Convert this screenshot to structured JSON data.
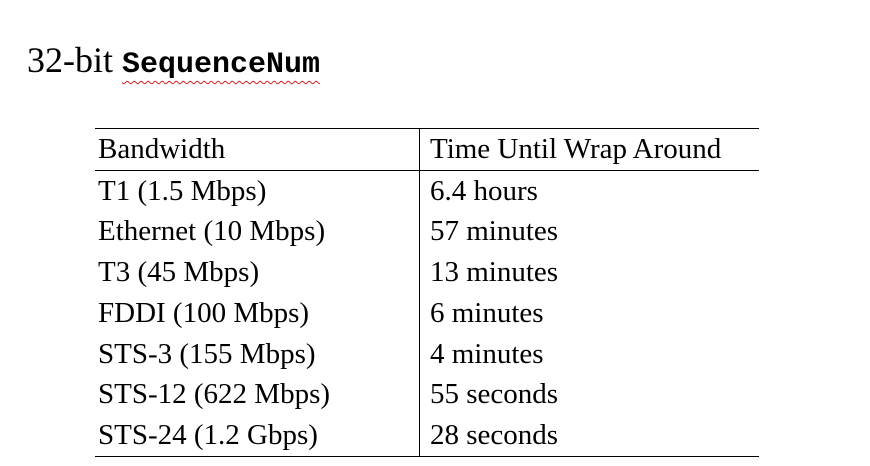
{
  "heading": {
    "prefix": "32-bit ",
    "code": "SequenceNum"
  },
  "table": {
    "headers": [
      "Bandwidth",
      "Time Until Wrap Around"
    ],
    "rows": [
      [
        "T1 (1.5 Mbps)",
        "6.4 hours"
      ],
      [
        "Ethernet (10 Mbps)",
        "57 minutes"
      ],
      [
        "T3 (45 Mbps)",
        "13 minutes"
      ],
      [
        "FDDI (100 Mbps)",
        "6 minutes"
      ],
      [
        "STS-3 (155 Mbps)",
        "4 minutes"
      ],
      [
        "STS-12 (622 Mbps)",
        "55 seconds"
      ],
      [
        "STS-24 (1.2 Gbps)",
        "28 seconds"
      ]
    ]
  },
  "colors": {
    "text": "#000000",
    "spellcheck_underline": "#d21f1f"
  }
}
